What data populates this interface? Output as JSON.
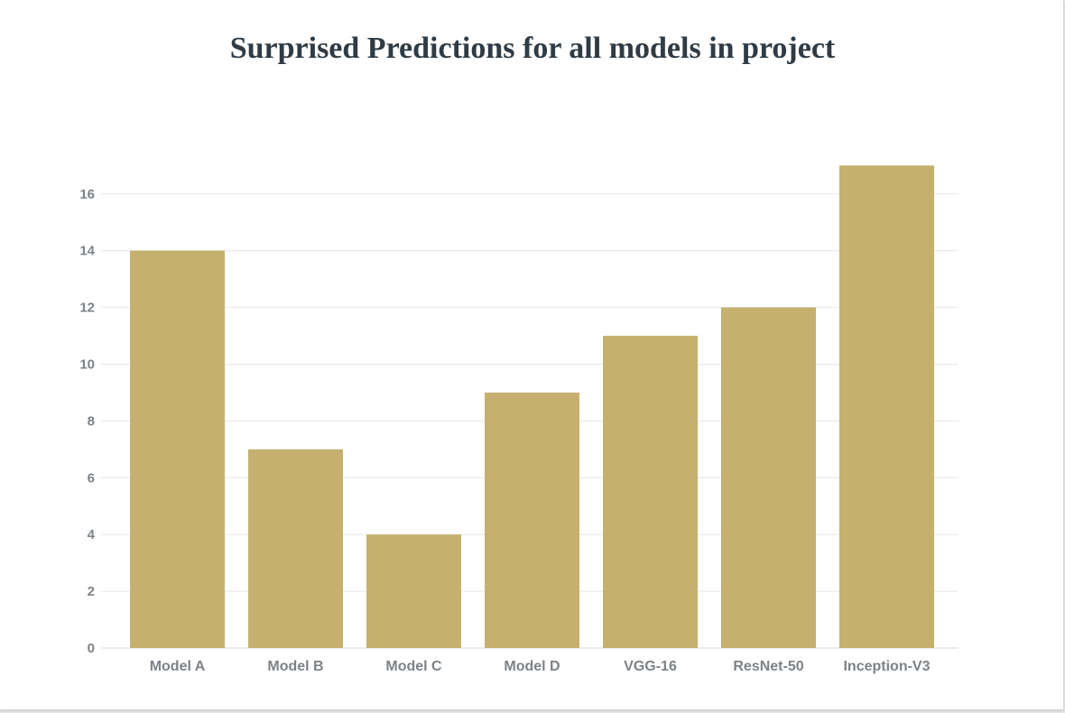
{
  "chart_data": {
    "type": "bar",
    "title": "Surprised Predictions for all models in project",
    "xlabel": "",
    "ylabel": "",
    "categories": [
      "Model A",
      "Model B",
      "Model C",
      "Model D",
      "VGG-16",
      "ResNet-50",
      "Inception-V3"
    ],
    "values": [
      14,
      7,
      4,
      9,
      11,
      12,
      17
    ],
    "yticks": [
      0,
      2,
      4,
      6,
      8,
      10,
      12,
      14,
      16
    ],
    "ylim": [
      0,
      17
    ],
    "grid": true,
    "legend": "none",
    "bar_color": "#c5b06f",
    "grid_color": "#e3e6ea"
  }
}
